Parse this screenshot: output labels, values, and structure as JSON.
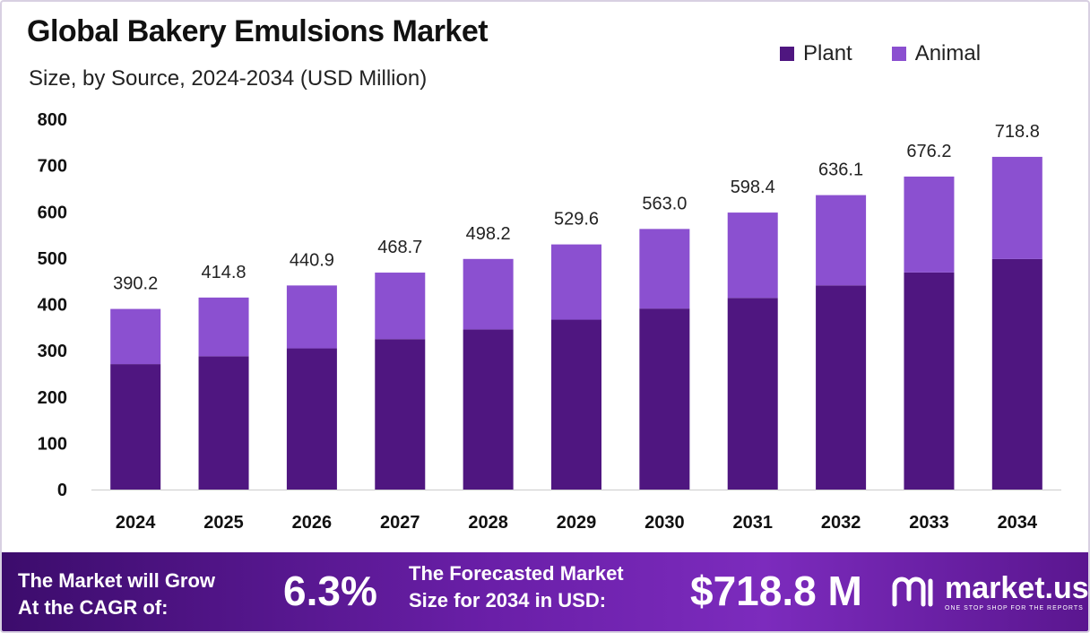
{
  "header": {
    "title": "Global Bakery Emulsions Market",
    "subtitle": "Size, by Source, 2024-2034 (USD Million)"
  },
  "legend": [
    {
      "label": "Plant",
      "color": "#4f1680"
    },
    {
      "label": "Animal",
      "color": "#8b50d0"
    }
  ],
  "chart_data": {
    "type": "bar",
    "stacked": true,
    "categories": [
      "2024",
      "2025",
      "2026",
      "2027",
      "2028",
      "2029",
      "2030",
      "2031",
      "2032",
      "2033",
      "2034"
    ],
    "series": [
      {
        "name": "Plant",
        "color": "#4f1680",
        "values": [
          271,
          288,
          305,
          325,
          346,
          367,
          391,
          414,
          441,
          469,
          498
        ]
      },
      {
        "name": "Animal",
        "color": "#8b50d0",
        "values": [
          119.2,
          126.8,
          135.9,
          143.7,
          152.2,
          162.6,
          172.0,
          184.4,
          195.1,
          207.2,
          220.8
        ]
      }
    ],
    "totals": [
      "390.2",
      "414.8",
      "440.9",
      "468.7",
      "498.2",
      "529.6",
      "563.0",
      "598.4",
      "636.1",
      "676.2",
      "718.8"
    ],
    "yticks": [
      "0",
      "100",
      "200",
      "300",
      "400",
      "500",
      "600",
      "700",
      "800"
    ],
    "ylim": [
      0,
      800
    ],
    "grid": false,
    "legend_position": "top-right"
  },
  "footer": {
    "cagr_label_line1": "The Market will Grow",
    "cagr_label_line2": "At the CAGR of:",
    "cagr_value": "6.3%",
    "forecast_label_line1": "The Forecasted Market",
    "forecast_label_line2": "Size for 2034 in USD:",
    "forecast_value": "$718.8 M",
    "brand_name": "market.us",
    "brand_tagline": "ONE STOP SHOP FOR THE REPORTS",
    "brand_icon": "market-us-logo-icon"
  }
}
